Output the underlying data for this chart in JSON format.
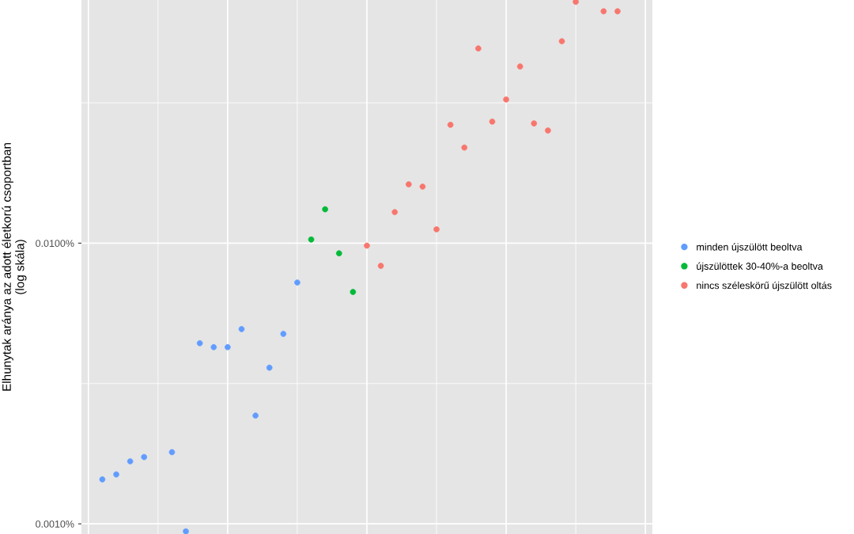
{
  "chart_data": {
    "type": "scatter",
    "ylabel": "Elhunytak aránya az adott életkorú csoportban\n(log skála)",
    "categories": [
      null,
      null,
      null,
      null,
      null,
      null,
      null,
      null,
      null,
      null,
      null,
      null,
      null,
      null,
      null,
      null,
      null,
      null,
      null,
      null,
      null,
      null,
      null,
      null,
      null,
      null,
      null,
      null,
      null,
      null,
      null,
      null,
      null,
      null,
      null,
      null,
      null,
      null,
      null,
      null,
      null
    ],
    "series": [
      {
        "name": "minden újszülött beoltva",
        "color": "#619cff",
        "values": [
          null,
          0.00144,
          0.0015,
          0.00167,
          0.00173,
          null,
          0.0018,
          0.00094,
          0.0044,
          0.00426,
          0.00426,
          0.00494,
          0.00243,
          0.0036,
          0.00475,
          0.00724,
          null,
          null,
          null,
          null,
          null,
          null,
          null,
          null,
          null,
          null,
          null,
          null,
          null,
          null,
          null,
          null,
          null,
          null,
          null,
          null,
          null,
          null,
          null,
          null,
          null
        ]
      },
      {
        "name": "újszülöttek 30-40%-a beoltva",
        "color": "#00ba38",
        "values": [
          null,
          null,
          null,
          null,
          null,
          null,
          null,
          null,
          null,
          null,
          null,
          null,
          null,
          null,
          null,
          null,
          0.0103,
          0.0132,
          0.0092,
          0.0067,
          null,
          null,
          null,
          null,
          null,
          null,
          null,
          null,
          null,
          null,
          null,
          null,
          null,
          null,
          null,
          null,
          null,
          null,
          null,
          null,
          null
        ]
      },
      {
        "name": "nincs széleskörű újszülött oltás",
        "color": "#f8766d",
        "values": [
          null,
          null,
          null,
          null,
          null,
          null,
          null,
          null,
          null,
          null,
          null,
          null,
          null,
          null,
          null,
          null,
          null,
          null,
          null,
          null,
          0.0098,
          0.0083,
          0.0129,
          0.0162,
          0.0159,
          0.0112,
          0.0264,
          0.0219,
          0.0494,
          0.0271,
          0.0325,
          0.0426,
          0.0267,
          0.0252,
          0.0524,
          0.0724,
          null,
          0.067,
          0.067,
          null,
          null
        ]
      }
    ],
    "log": "y",
    "ylim": [
      0.00092,
      0.0735
    ],
    "yticks": [
      {
        "value": 0.001,
        "label": "0.0010%"
      },
      {
        "value": 0.01,
        "label": "0.0100%"
      }
    ],
    "tick_labels": "y",
    "grid": true,
    "legend": "right",
    "marker": "circle"
  }
}
